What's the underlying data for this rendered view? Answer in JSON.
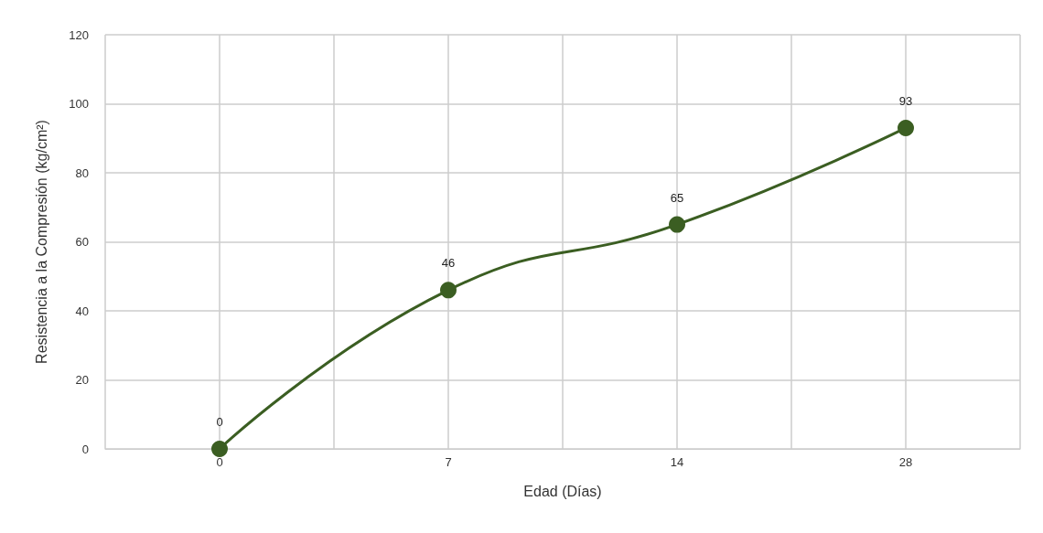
{
  "chart_data": {
    "type": "line",
    "xlabel": "Edad (Días)",
    "ylabel": "Resistencia a la Compresión (kg/cm²)",
    "categories": [
      "0",
      "7",
      "14",
      "28"
    ],
    "series": [
      {
        "color": "#3b5e22",
        "values": [
          0,
          46,
          65,
          93
        ]
      }
    ],
    "ylim": [
      0,
      120
    ],
    "yticks": [
      0,
      20,
      40,
      60,
      80,
      100,
      120
    ],
    "grid": true,
    "marker": "circle",
    "line_style": "solid",
    "data_labels": true
  }
}
